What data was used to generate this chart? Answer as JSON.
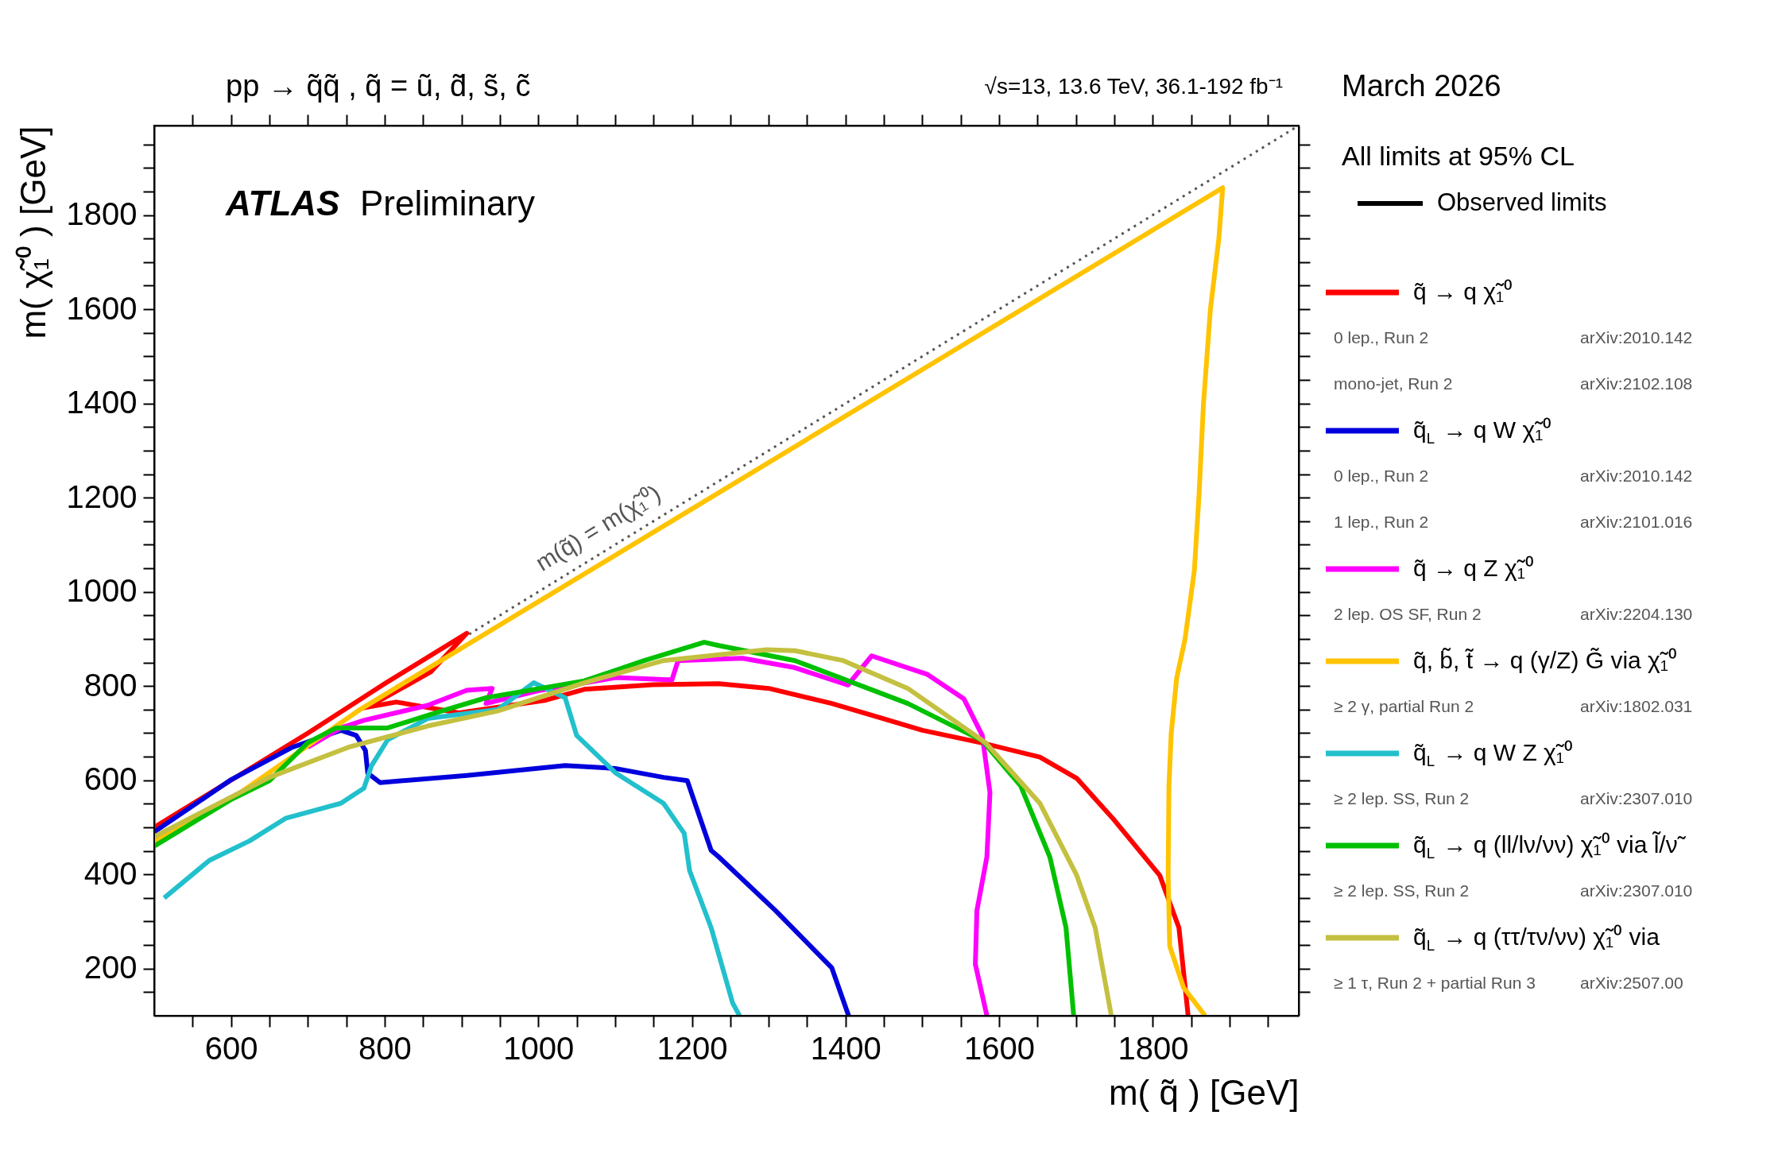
{
  "chart_data": {
    "type": "line",
    "title": "pp → q̃q̃ ,   q̃ = ũ, d̃, s̃, c̃",
    "subtitle": "√s=13, 13.6 TeV, 36.1-192 fb⁻¹",
    "xlabel": "m( q̃ ) [GeV]",
    "ylabel": "m( χ̃₁⁰ ) [GeV]",
    "legend_title": "All limits at 95% CL",
    "legend": "right",
    "grid": false,
    "xlim": [
      500,
      1990
    ],
    "ylim": [
      100,
      1990
    ],
    "xticks": [
      {
        "value": 550,
        "label": null
      },
      600,
      {
        "value": 650,
        "label": null
      },
      {
        "value": 700,
        "label": null
      },
      {
        "value": 750,
        "label": null
      },
      800,
      {
        "value": 850,
        "label": null
      },
      {
        "value": 900,
        "label": null
      },
      {
        "value": 950,
        "label": null
      },
      1000,
      {
        "value": 1050,
        "label": null
      },
      {
        "value": 1100,
        "label": null
      },
      {
        "value": 1150,
        "label": null
      },
      1200,
      {
        "value": 1250,
        "label": null
      },
      {
        "value": 1300,
        "label": null
      },
      {
        "value": 1350,
        "label": null
      },
      1400,
      {
        "value": 1450,
        "label": null
      },
      {
        "value": 1500,
        "label": null
      },
      {
        "value": 1550,
        "label": null
      },
      1600,
      {
        "value": 1650,
        "label": null
      },
      {
        "value": 1700,
        "label": null
      },
      {
        "value": 1750,
        "label": null
      },
      1800,
      {
        "value": 1850,
        "label": null
      },
      {
        "value": 1900,
        "label": null
      },
      {
        "value": 1950,
        "label": null
      }
    ],
    "yticks": [
      {
        "value": 150,
        "label": null
      },
      200,
      {
        "value": 250,
        "label": null
      },
      {
        "value": 300,
        "label": null
      },
      {
        "value": 350,
        "label": null
      },
      400,
      {
        "value": 450,
        "label": null
      },
      {
        "value": 500,
        "label": null
      },
      {
        "value": 550,
        "label": null
      },
      600,
      {
        "value": 650,
        "label": null
      },
      {
        "value": 700,
        "label": null
      },
      {
        "value": 750,
        "label": null
      },
      800,
      {
        "value": 850,
        "label": null
      },
      {
        "value": 900,
        "label": null
      },
      {
        "value": 950,
        "label": null
      },
      1000,
      {
        "value": 1050,
        "label": null
      },
      {
        "value": 1100,
        "label": null
      },
      {
        "value": 1150,
        "label": null
      },
      1200,
      {
        "value": 1250,
        "label": null
      },
      {
        "value": 1300,
        "label": null
      },
      {
        "value": 1350,
        "label": null
      },
      1400,
      {
        "value": 1450,
        "label": null
      },
      {
        "value": 1500,
        "label": null
      },
      {
        "value": 1550,
        "label": null
      },
      1600,
      {
        "value": 1650,
        "label": null
      },
      {
        "value": 1700,
        "label": null
      },
      {
        "value": 1750,
        "label": null
      },
      1800,
      {
        "value": 1850,
        "label": null
      },
      {
        "value": 1900,
        "label": null
      },
      {
        "value": 1950,
        "label": null
      }
    ],
    "annotations": [
      "March 2026",
      "ATLAS Preliminary",
      "Observed limits",
      "0 lep., Run 2",
      "arXiv:2010.142",
      "mono-jet, Run 2",
      "arXiv:2102.108",
      "0 lep., Run 2",
      "arXiv:2010.142",
      "1 lep., Run 2",
      "arXiv:2101.016",
      "2 lep. OS SF, Run 2",
      "arXiv:2204.130",
      "≥ 2 γ, partial Run 2",
      "arXiv:1802.031",
      "≥ 2 lep. SS, Run 2",
      "arXiv:2307.010",
      "≥ 2 lep. SS, Run 2",
      "arXiv:2307.010",
      "≥ 1 τ, Run 2 + partial Run 3",
      "arXiv:2507.00"
    ],
    "series": [
      {
        "name": "q̃ → q χ̃₁⁰",
        "color": "#ff0000",
        "x": [
          500,
          600,
          700,
          800,
          907,
          860,
          800,
          773,
          815,
          897,
          1010,
          1060,
          1150,
          1235,
          1300,
          1382,
          1440,
          1500,
          1578,
          1653,
          1701,
          1750,
          1809,
          1834,
          1846
        ],
        "values": [
          500,
          600,
          700,
          805,
          912,
          830,
          775,
          754,
          766,
          743,
          770,
          793,
          803,
          805,
          795,
          763,
          735,
          706,
          679,
          649,
          604,
          515,
          398,
          287,
          100
        ]
      },
      {
        "name": "q̃$_{L}$ → q W χ̃₁⁰",
        "color": "#0000dd",
        "x": [
          500,
          599,
          680,
          743,
          763,
          775,
          778,
          794,
          907,
          1035,
          1100,
          1163,
          1194,
          1225,
          1235,
          1309,
          1382,
          1404
        ],
        "values": [
          490,
          600,
          670,
          706,
          695,
          663,
          615,
          595,
          610,
          631,
          625,
          606,
          599,
          451,
          437,
          323,
          202,
          100
        ]
      },
      {
        "name": "q̃ → q Z χ̃₁⁰",
        "color": "#ff00ff",
        "x": [
          700,
          743,
          773,
          856,
          907,
          940,
          932,
          1000,
          1101,
          1174,
          1182,
          1266,
          1334,
          1403,
          1434,
          1506,
          1554,
          1578,
          1588,
          1584,
          1571,
          1569,
          1584
        ],
        "values": [
          670,
          711,
          727,
          759,
          791,
          795,
          763,
          790,
          818,
          813,
          854,
          859,
          839,
          802,
          864,
          825,
          773,
          695,
          574,
          437,
          323,
          209,
          100
        ]
      },
      {
        "name": "q̃, b̃, t̃ → q (γ/Z) G̃ via χ̃₁⁰",
        "color": "#ffc300",
        "x": [
          500,
          600,
          768,
          1000,
          1200,
          1500,
          1891,
          1886,
          1875,
          1866,
          1860,
          1854,
          1842,
          1831,
          1824,
          1821,
          1820,
          1822,
          1840,
          1868
        ],
        "values": [
          470,
          560,
          750,
          979,
          1176,
          1472,
          1858,
          1750,
          1600,
          1400,
          1200,
          1044,
          900,
          816,
          700,
          588,
          400,
          248,
          160,
          100
        ]
      },
      {
        "name": "q̃$_{L}$ → q W Z χ̃₁⁰",
        "color": "#22c0cc",
        "x": [
          513,
          572,
          624,
          671,
          743,
          773,
          783,
          804,
          856,
          947,
          994,
          1035,
          1050,
          1101,
          1163,
          1190,
          1197,
          1225,
          1253,
          1262
        ],
        "values": [
          350,
          430,
          471,
          519,
          551,
          583,
          631,
          686,
          731,
          750,
          807,
          775,
          695,
          615,
          551,
          487,
          408,
          287,
          127,
          100
        ]
      },
      {
        "name": "q̃$_{L}$ → q (ll/lν/νν) χ̃₁⁰ via l̃/ν̃",
        "color": "#00c000",
        "x": [
          500,
          599,
          650,
          700,
          737,
          804,
          870,
          932,
          1060,
          1138,
          1216,
          1235,
          1334,
          1481,
          1578,
          1628,
          1666,
          1687,
          1697
        ],
        "values": [
          460,
          558,
          599,
          680,
          711,
          711,
          745,
          775,
          811,
          854,
          893,
          886,
          854,
          763,
          684,
          588,
          437,
          287,
          100
        ]
      },
      {
        "name": "q̃$_{L}$ → q (ττ/τν/νν) χ̃₁⁰ via",
        "color": "#c4c040",
        "x": [
          500,
          650,
          753,
          856,
          947,
          1060,
          1163,
          1297,
          1334,
          1397,
          1481,
          1582,
          1653,
          1701,
          1725,
          1746
        ],
        "values": [
          480,
          606,
          670,
          715,
          747,
          807,
          854,
          877,
          875,
          854,
          795,
          680,
          551,
          398,
          287,
          100
        ]
      },
      {
        "name": "m(q̃) = m(χ̃₁⁰)",
        "color": "#555555",
        "line_style": "dotted",
        "x": [
          910,
          1990
        ],
        "values": [
          910,
          1990
        ]
      }
    ]
  }
}
